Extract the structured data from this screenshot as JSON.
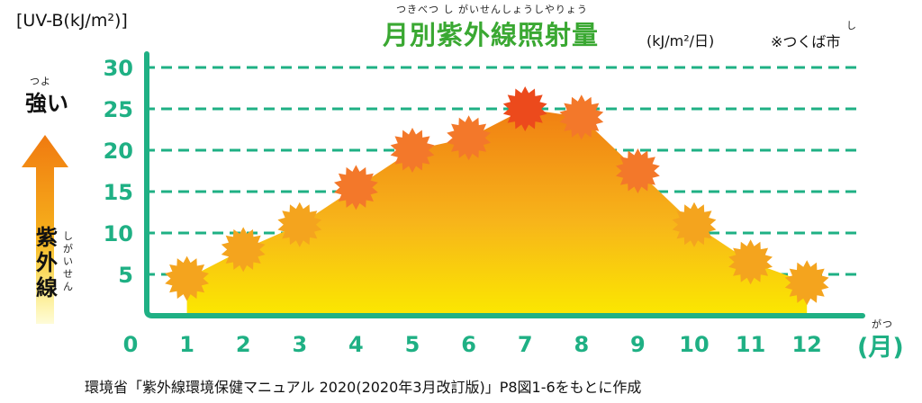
{
  "header": {
    "title": "月別紫外線照射量",
    "title_furigana": "つきべつ し がいせんしょうしやりょう",
    "unit_inline": "(kJ/m²/日)",
    "city_note": "※つくば市",
    "city_furigana": "し"
  },
  "yaxis_unit_label": "[UV-B(kJ/m²)]",
  "side_label": {
    "strong": "強い",
    "strong_furigana": "つよ",
    "uv": "紫外線",
    "uv_furigana": "しがいせん"
  },
  "month_unit": "(月)",
  "month_unit_furigana": "がつ",
  "source_caption": "環境省「紫外線環境保健マニュアル 2020(2020年3月改訂版)」P8図1-6をもとに作成",
  "colors": {
    "axis_green": "#1fb084",
    "title_green": "#3aa832",
    "area_top": "#f08a14",
    "area_bottom": "#fbe600",
    "burst_low": "#f4a41e",
    "burst_mid": "#f3782a",
    "burst_high": "#ec4a1c"
  },
  "chart_data": {
    "type": "area",
    "x": [
      1,
      2,
      3,
      4,
      5,
      6,
      7,
      8,
      9,
      10,
      11,
      12
    ],
    "values": [
      4.5,
      8,
      11,
      15.5,
      20,
      21.5,
      25,
      24,
      17.5,
      11,
      6.5,
      4
    ],
    "xlim": [
      0,
      12
    ],
    "ylim": [
      0,
      30
    ],
    "xticks": [
      "0",
      "1",
      "2",
      "3",
      "4",
      "5",
      "6",
      "7",
      "8",
      "9",
      "10",
      "11",
      "12"
    ],
    "yticks": [
      "5",
      "10",
      "15",
      "20",
      "25",
      "30"
    ],
    "grid": true,
    "title": "月別紫外線照射量"
  }
}
